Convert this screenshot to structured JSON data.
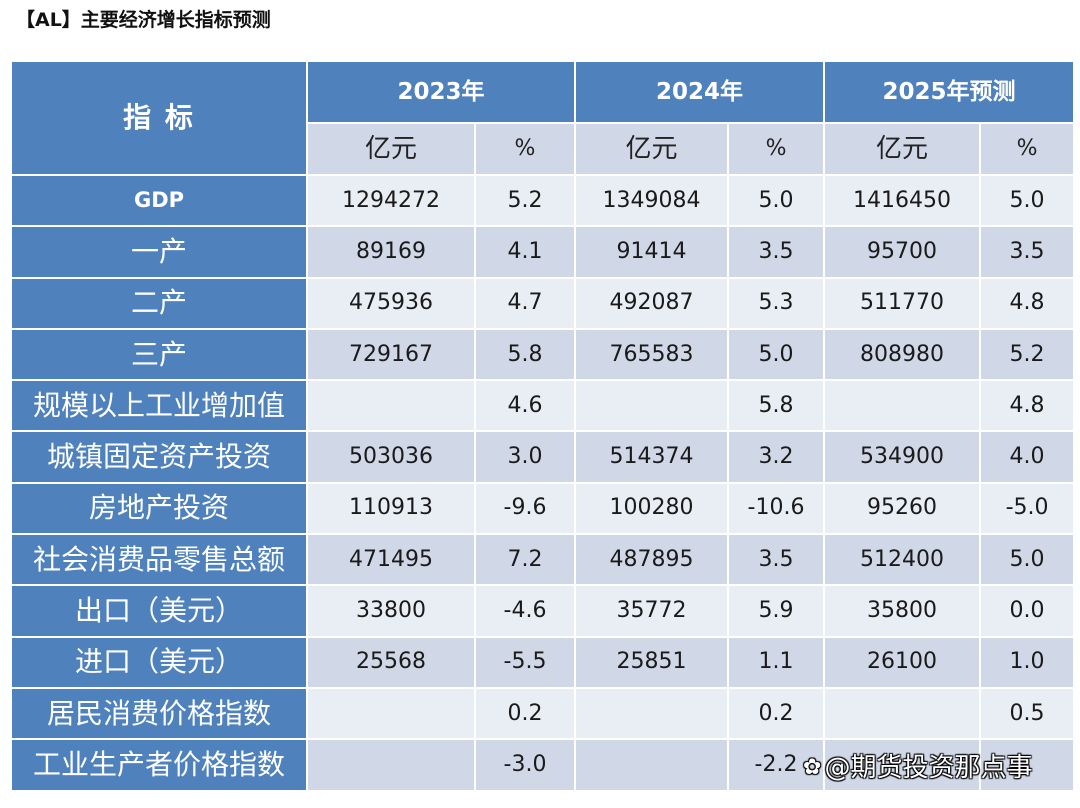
{
  "title": "【AL】主要经济增长指标预测",
  "colors": {
    "header_blue": "#4f81bd",
    "unit_row": "#d0d8e8",
    "row_light": "#e9edf4",
    "row_alt": "#d0d8e8",
    "header_text": "#ffffff",
    "body_text": "#1a1a1a"
  },
  "table": {
    "indicator_header": "指 标",
    "years": [
      {
        "label": "2023年",
        "unit_amount": "亿元",
        "unit_pct": "%"
      },
      {
        "label": "2024年",
        "unit_amount": "亿元",
        "unit_pct": "%"
      },
      {
        "label": "2025年预测",
        "unit_amount": "亿元",
        "unit_pct": "%"
      }
    ],
    "rows": [
      {
        "indicator": "GDP",
        "values": [
          "1294272",
          "5.2",
          "1349084",
          "5.0",
          "1416450",
          "5.0"
        ]
      },
      {
        "indicator": "一产",
        "values": [
          "89169",
          "4.1",
          "91414",
          "3.5",
          "95700",
          "3.5"
        ]
      },
      {
        "indicator": "二产",
        "values": [
          "475936",
          "4.7",
          "492087",
          "5.3",
          "511770",
          "4.8"
        ]
      },
      {
        "indicator": "三产",
        "values": [
          "729167",
          "5.8",
          "765583",
          "5.0",
          "808980",
          "5.2"
        ]
      },
      {
        "indicator": "规模以上工业增加值",
        "values": [
          "",
          "4.6",
          "",
          "5.8",
          "",
          "4.8"
        ]
      },
      {
        "indicator": "城镇固定资产投资",
        "values": [
          "503036",
          "3.0",
          "514374",
          "3.2",
          "534900",
          "4.0"
        ]
      },
      {
        "indicator": "房地产投资",
        "values": [
          "110913",
          "-9.6",
          "100280",
          "-10.6",
          "95260",
          "-5.0"
        ]
      },
      {
        "indicator": "社会消费品零售总额",
        "values": [
          "471495",
          "7.2",
          "487895",
          "3.5",
          "512400",
          "5.0"
        ]
      },
      {
        "indicator": "出口（美元）",
        "values": [
          "33800",
          "-4.6",
          "35772",
          "5.9",
          "35800",
          "0.0"
        ]
      },
      {
        "indicator": "进口（美元）",
        "values": [
          "25568",
          "-5.5",
          "25851",
          "1.1",
          "26100",
          "1.0"
        ]
      },
      {
        "indicator": "居民消费价格指数",
        "values": [
          "",
          "0.2",
          "",
          "0.2",
          "",
          "0.5"
        ]
      },
      {
        "indicator": "工业生产者价格指数",
        "values": [
          "",
          "-3.0",
          "",
          "-2.2",
          "",
          ""
        ]
      }
    ]
  },
  "watermark": {
    "icon": "flower-logo-icon",
    "text": "@期货投资那点事"
  }
}
